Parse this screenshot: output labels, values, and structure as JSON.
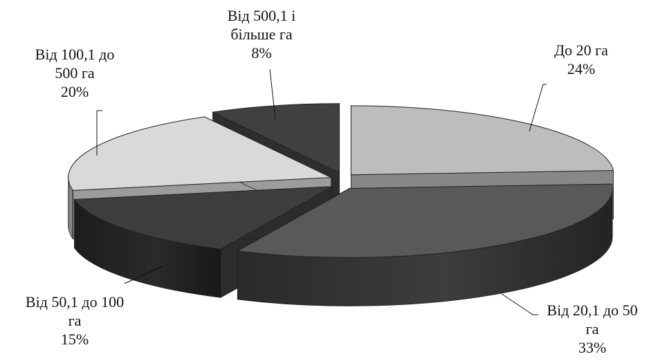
{
  "chart_data": {
    "type": "pie",
    "title": "",
    "three_d": true,
    "exploded": true,
    "start_angle_deg": -90,
    "direction": "clockwise",
    "slices": [
      {
        "label_lines": [
          "До 20 га"
        ],
        "percent_label": "24%",
        "value": 24,
        "color": "#bdbdbd"
      },
      {
        "label_lines": [
          "Від 20,1 до 50",
          "га"
        ],
        "percent_label": "33%",
        "value": 33,
        "color": "#595959"
      },
      {
        "label_lines": [
          "Від 50,1 до 100",
          "га"
        ],
        "percent_label": "15%",
        "value": 15,
        "color": "#3d3d3d"
      },
      {
        "label_lines": [
          "Від 100,1 до",
          "500 га"
        ],
        "percent_label": "20%",
        "value": 20,
        "color": "#d9d9d9"
      },
      {
        "label_lines": [
          "Від 500,1 і",
          "більше га"
        ],
        "percent_label": "8%",
        "value": 8,
        "color": "#404040"
      }
    ]
  }
}
